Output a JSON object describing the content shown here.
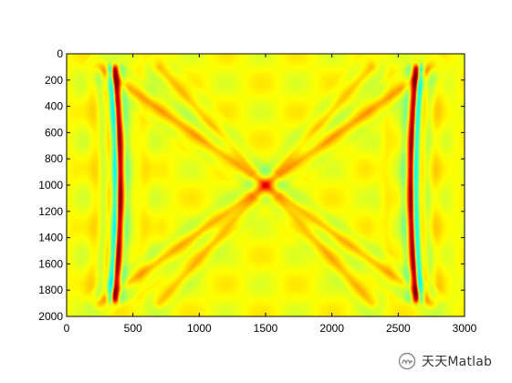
{
  "chart_data": {
    "type": "heatmap",
    "title": "",
    "xlabel": "",
    "ylabel": "",
    "xlim": [
      0,
      3000
    ],
    "ylim": [
      2000,
      0
    ],
    "x_ticks": [
      0,
      500,
      1000,
      1500,
      2000,
      2500,
      3000
    ],
    "y_ticks": [
      0,
      200,
      400,
      600,
      800,
      1000,
      1200,
      1400,
      1600,
      1800,
      2000
    ],
    "x_tick_labels": [
      "0",
      "500",
      "1000",
      "1500",
      "2000",
      "2500",
      "3000"
    ],
    "y_tick_labels": [
      "0",
      "200",
      "400",
      "600",
      "800",
      "1000",
      "1200",
      "1400",
      "1600",
      "1800",
      "2000"
    ],
    "y_reversed": true,
    "colormap": "jet",
    "background_level": 0.62,
    "grid": false,
    "features": {
      "main_arcs": [
        {
          "x_base": 385,
          "x_top": 345,
          "y_top": 120,
          "y_bottom": 1860
        },
        {
          "x_base": 2615,
          "x_top": 2655,
          "y_top": 120,
          "y_bottom": 1860
        }
      ],
      "diagonal_lines": [
        {
          "from": [
            250,
            100
          ],
          "to": [
            2750,
            1900
          ]
        },
        {
          "from": [
            2750,
            100
          ],
          "to": [
            250,
            1900
          ]
        },
        {
          "from": [
            700,
            100
          ],
          "to": [
            2300,
            1900
          ]
        },
        {
          "from": [
            2300,
            100
          ],
          "to": [
            700,
            1900
          ]
        }
      ]
    }
  },
  "colors": {
    "background": "#ffffff",
    "axes_frame": "#000000",
    "colormap_low": "#00007f",
    "colormap_mid": "#7fff7f",
    "colormap_high": "#7f0000"
  },
  "watermark": {
    "text": "天天Matlab",
    "icon": "wechat-channel-icon"
  }
}
